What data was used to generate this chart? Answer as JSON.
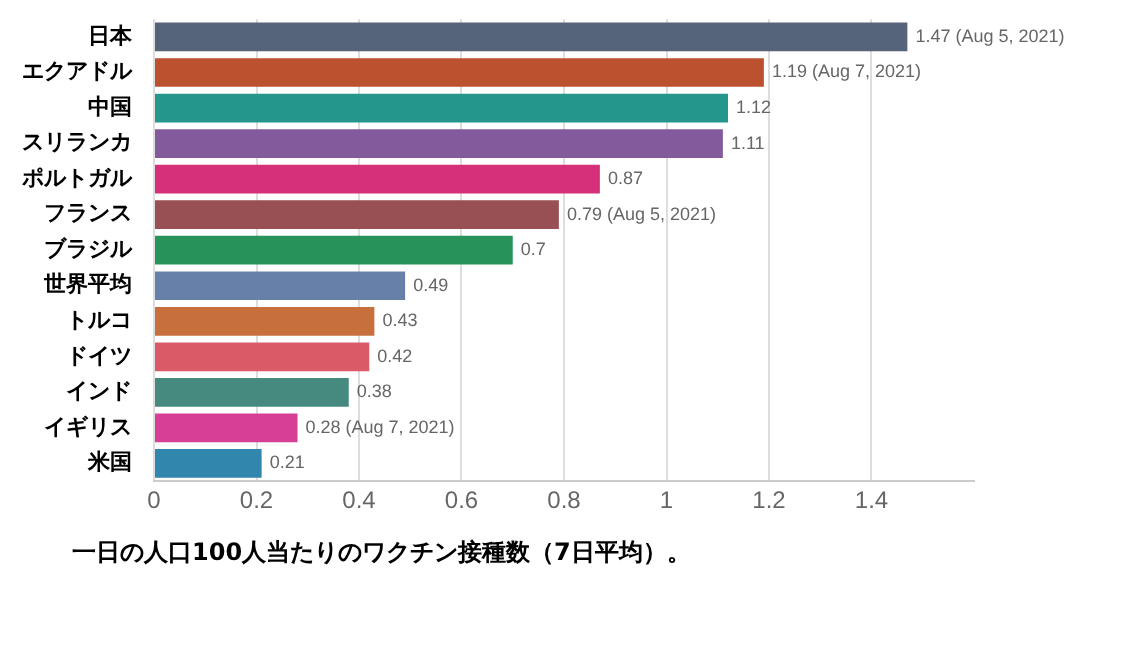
{
  "chart_data": {
    "type": "bar",
    "orientation": "horizontal",
    "categories": [
      "日本",
      "エクアドル",
      "中国",
      "スリランカ",
      "ポルトガル",
      "フランス",
      "ブラジル",
      "世界平均",
      "トルコ",
      "ドイツ",
      "インド",
      "イギリス",
      "米国"
    ],
    "values": [
      1.47,
      1.19,
      1.12,
      1.11,
      0.87,
      0.79,
      0.7,
      0.49,
      0.43,
      0.42,
      0.38,
      0.28,
      0.21
    ],
    "colors": [
      "#566479",
      "#bc512f",
      "#24968c",
      "#835a9c",
      "#d5307a",
      "#985055",
      "#27935a",
      "#6780aa",
      "#c8703b",
      "#da5a68",
      "#468a7f",
      "#d63f95",
      "#3086ad"
    ],
    "value_labels": [
      "1.47 (Aug 5, 2021)",
      "1.19 (Aug 7, 2021)",
      "1.12",
      "1.11",
      "0.87",
      "0.79 (Aug 5, 2021)",
      "0.7",
      "0.49",
      "0.43",
      "0.42",
      "0.38",
      "0.28 (Aug 7, 2021)",
      "0.21"
    ],
    "xlim": [
      0,
      1.6
    ],
    "xticks": [
      0,
      0.2,
      0.4,
      0.6,
      0.8,
      1,
      1.2,
      1.4
    ],
    "grid": "x",
    "legend": false,
    "annotations": [
      "一日の人口100人当たりのワクチン接種数（7日平均）。"
    ]
  }
}
